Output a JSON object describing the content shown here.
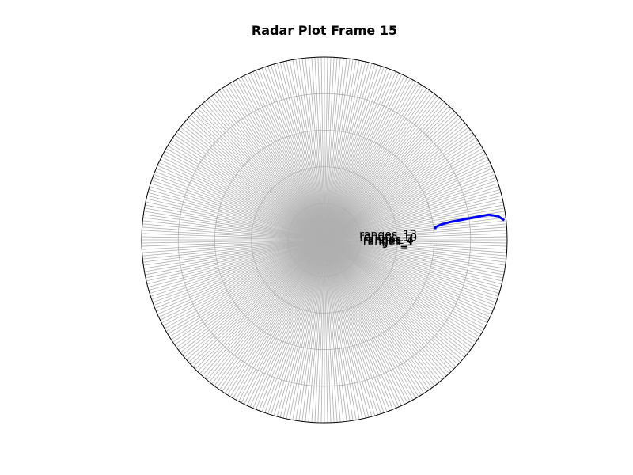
{
  "chart_data": {
    "type": "radar",
    "title": "Radar Plot Frame 15",
    "r_max": 1.0,
    "ring_radii": [
      0.2,
      0.4,
      0.6,
      0.8
    ],
    "grid": true,
    "spoke_count": 360,
    "range_labels": [
      {
        "text": "ranges_13",
        "r": 0.35,
        "angle_deg": 5.0
      },
      {
        "text": "ranges_10",
        "r": 0.35,
        "angle_deg": 2.5
      },
      {
        "text": "ranges_7",
        "r": 0.35,
        "angle_deg": 0.8
      },
      {
        "text": "ranges_4",
        "r": 0.35,
        "angle_deg": -0.4
      },
      {
        "text": "ranges_1",
        "r": 0.35,
        "angle_deg": -1.5
      }
    ],
    "series": [
      {
        "color": "#0000ff",
        "angles_deg": [
          6.2,
          7.7,
          8.7,
          8.1,
          7.6,
          6.5,
          5.5
        ],
        "values": [
          0.99,
          0.96,
          0.91,
          0.7,
          0.65,
          0.61,
          0.61
        ]
      }
    ]
  }
}
